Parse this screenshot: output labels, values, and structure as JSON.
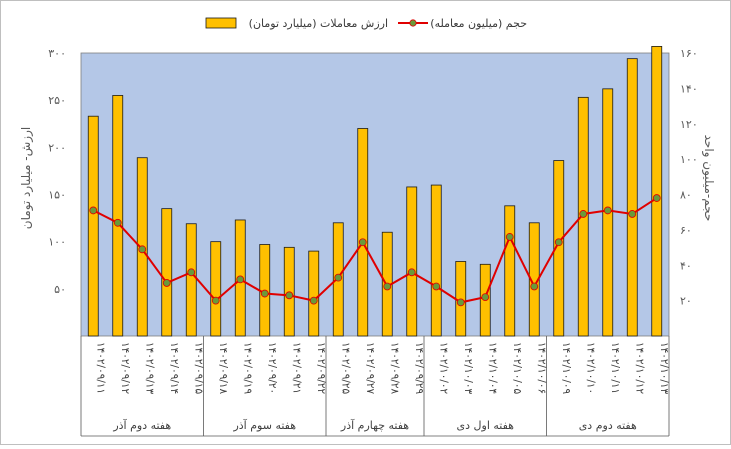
{
  "chart_data": {
    "type": "bar+line",
    "legend": {
      "bar_label": "ارزش معاملات (میلیارد تومان)",
      "line_label": "حجم (میلیون معامله)",
      "placement": "top-center"
    },
    "y_left": {
      "label": "ارزش- میلیارد تومان",
      "range": [
        0,
        300
      ],
      "ticks": [
        50,
        100,
        150,
        200,
        250,
        300
      ],
      "tick_labels": [
        "۵۰",
        "۱۰۰",
        "۱۵۰",
        "۲۰۰",
        "۲۵۰",
        "۳۰۰"
      ]
    },
    "y_right": {
      "label": "حجم-میلیون واحد",
      "range": [
        0,
        160
      ],
      "ticks": [
        20,
        40,
        60,
        80,
        100,
        120,
        140,
        160
      ],
      "tick_labels": [
        "۲۰",
        "۴۰",
        "۶۰",
        "۸۰",
        "۱۰۰",
        "۱۲۰",
        "۱۴۰",
        "۱۶۰"
      ]
    },
    "categories": [
      "۱۴۰۲/۰۹/۱۱",
      "۱۴۰۲/۰۹/۱۲",
      "۱۴۰۲/۰۹/۱۳",
      "۱۴۰۲/۰۹/۱۴",
      "۱۴۰۲/۰۹/۱۵",
      "۱۴۰۲/۰۹/۱۸",
      "۱۴۰۲/۰۹/۱۹",
      "۱۴۰۲/۰۹/۲۰",
      "۱۴۰۲/۰۹/۲۱",
      "۱۴۰۲/۰۹/۲۲",
      "۱۴۰۲/۰۹/۲۵",
      "۱۴۰۲/۰۹/۲۷",
      "۱۴۰۲/۰۹/۲۸",
      "۱۴۰۲/۰۹/۲۹",
      "۱۴۰۲/۱۰/۰۲",
      "۱۴۰۲/۱۰/۰۳",
      "۱۴۰۲/۱۰/۰۴",
      "۱۴۰۲/۱۰/۰۵",
      "۱۴۰۲/۱۰/۰۶",
      "۱۴۰۲/۱۰/۰۹",
      "۱۴۰۲/۱۰/۱۰",
      "۱۴۰۲/۱۰/۱۱",
      "۱۴۰۲/۱۰/۱۲",
      "۱۴۰۲/۱۰/۱۳"
    ],
    "series": [
      {
        "name": "ارزش معاملات (میلیارد تومان)",
        "kind": "bar",
        "axis": "left",
        "values": [
          233,
          255,
          189,
          135,
          119,
          100,
          123,
          97,
          94,
          90,
          120,
          220,
          110,
          158,
          160,
          79,
          76,
          138,
          120,
          186,
          253,
          262,
          294,
          307
        ]
      },
      {
        "name": "حجم (میلیون معامله)",
        "kind": "line",
        "axis": "right",
        "values": [
          71,
          64,
          49,
          30,
          36,
          20,
          32,
          24,
          23,
          20,
          33,
          53,
          28,
          36,
          28,
          19,
          22,
          56,
          28,
          53,
          69,
          71,
          69,
          78
        ]
      }
    ],
    "groups": [
      {
        "label": "هفته دوم آذر",
        "start": 0,
        "end": 4
      },
      {
        "label": "هفته سوم آذر",
        "start": 5,
        "end": 9
      },
      {
        "label": "هفته چهارم آذر",
        "start": 10,
        "end": 13
      },
      {
        "label": "هفته اول دی",
        "start": 14,
        "end": 18
      },
      {
        "label": "هفته دوم دی",
        "start": 19,
        "end": 23
      }
    ],
    "colors": {
      "bar_fill": "#FFC000",
      "bar_stroke": "#1a1a1a",
      "line": "#E00000",
      "marker": "#6A9A3A",
      "plot_bg": "#B4C7E7",
      "axis_text": "#595959"
    }
  }
}
